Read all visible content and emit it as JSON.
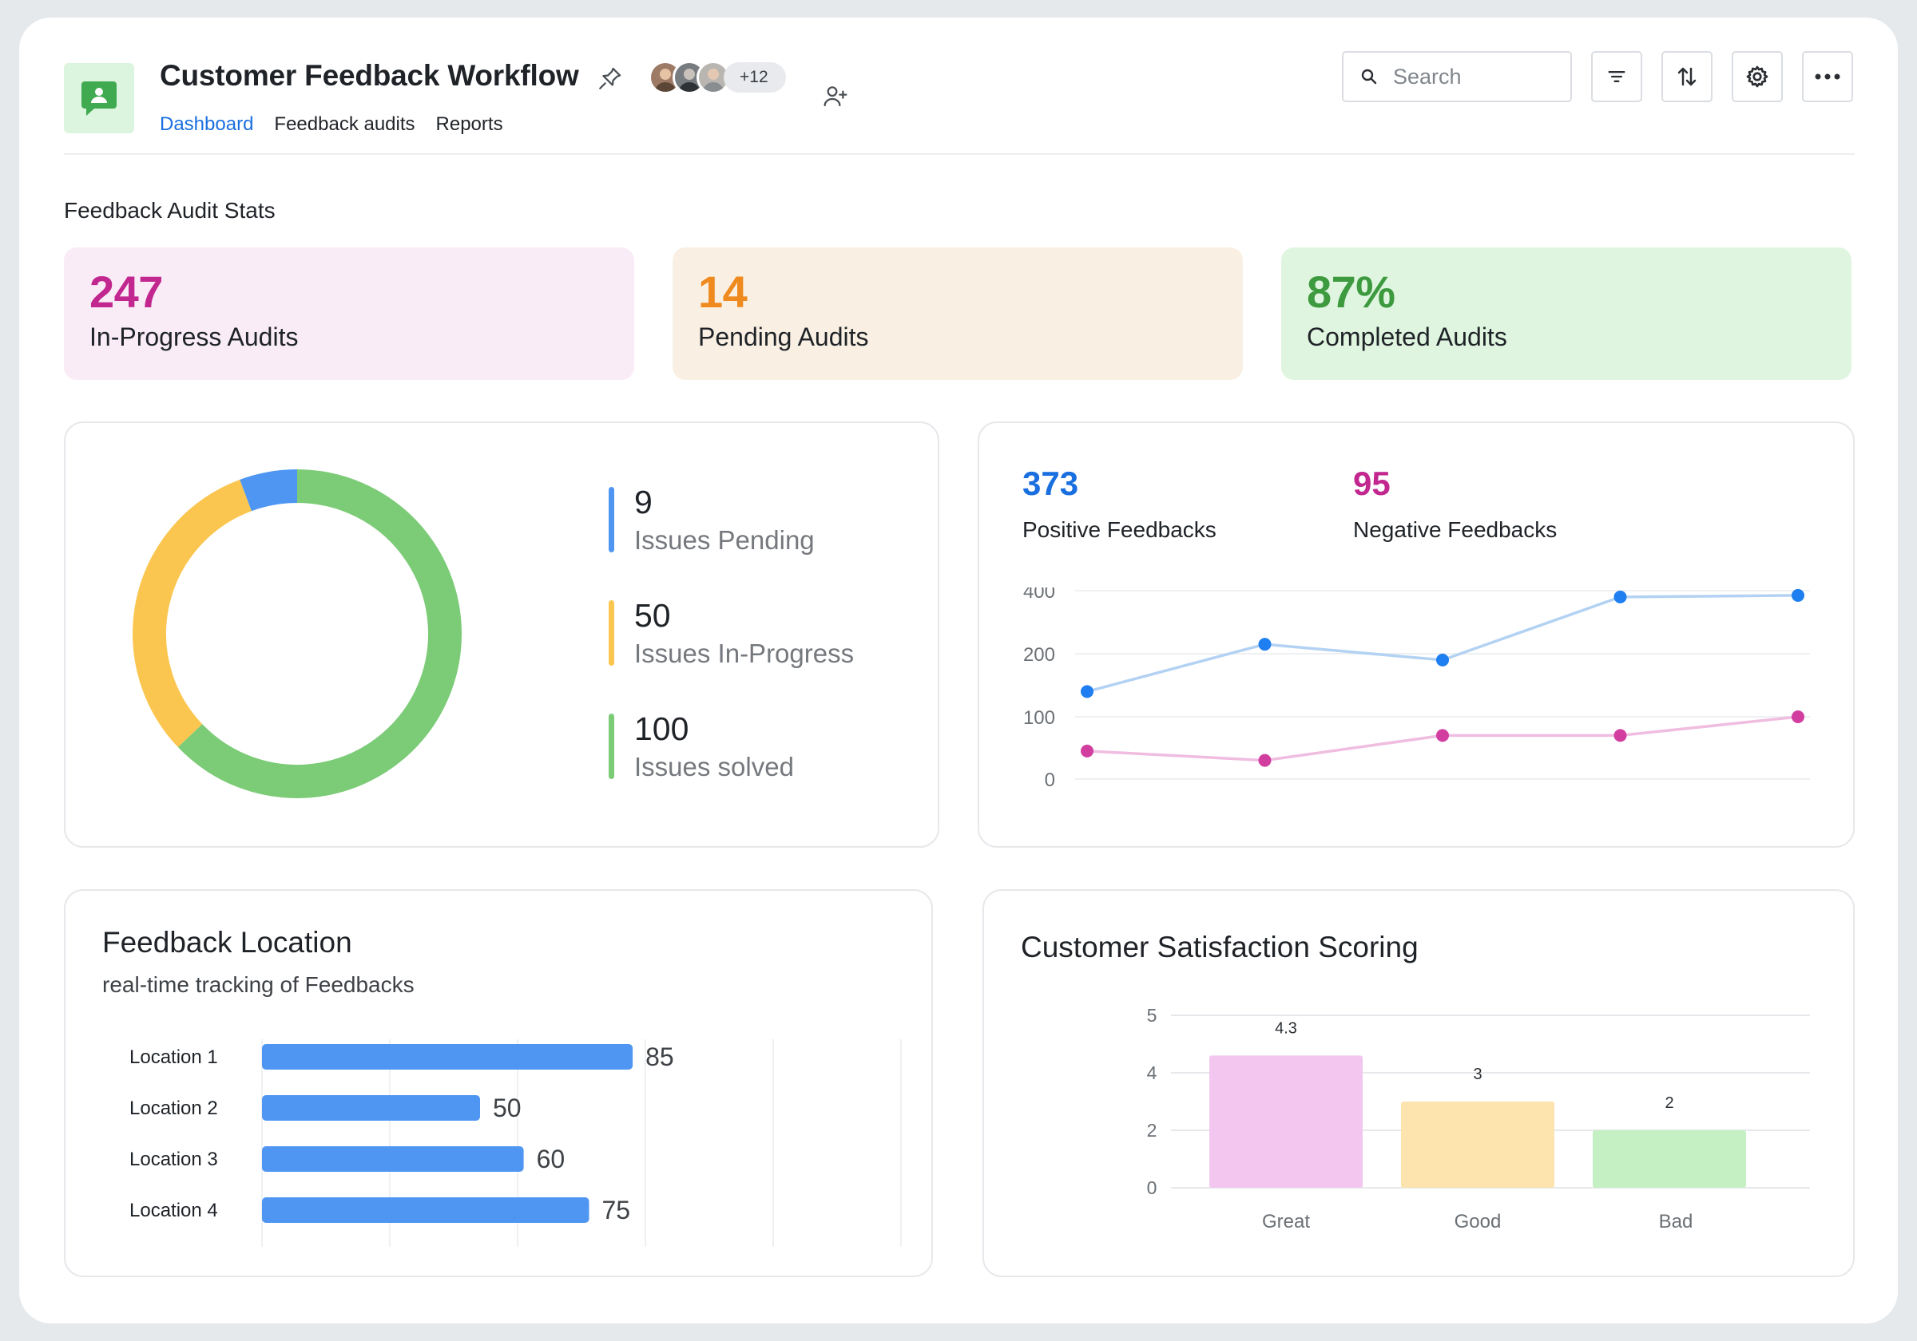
{
  "header": {
    "title": "Customer Feedback Workflow",
    "avatars_more": "+12",
    "tabs": [
      {
        "label": "Dashboard",
        "active": true
      },
      {
        "label": "Feedback audits",
        "active": false
      },
      {
        "label": "Reports",
        "active": false
      }
    ],
    "search": {
      "placeholder": "Search"
    },
    "icons": {
      "app": "chat-user-icon",
      "pin": "pin-icon",
      "add_user": "add-user-icon",
      "search": "search-icon",
      "filter": "filter-icon",
      "sort": "sort-icon",
      "settings": "gear-icon",
      "more": "more-dots-icon"
    }
  },
  "stats": {
    "section_title": "Feedback Audit Stats",
    "cards": [
      {
        "value": "247",
        "label": "In-Progress Audits",
        "bg": "#f9ecf7",
        "color": "#c2278f"
      },
      {
        "value": "14",
        "label": "Pending Audits",
        "bg": "#f9f0e3",
        "color": "#ef8a1f"
      },
      {
        "value": "87%",
        "label": "Completed Audits",
        "bg": "#dff5df",
        "color": "#3d9a3f"
      }
    ]
  },
  "issues": {
    "items": [
      {
        "value": "9",
        "label": "Issues Pending",
        "color": "#4e96f2"
      },
      {
        "value": "50",
        "label": "Issues In-Progress",
        "color": "#fbc650"
      },
      {
        "value": "100",
        "label": "Issues solved",
        "color": "#7ccb77"
      }
    ]
  },
  "feedbacks": {
    "positive": {
      "value": "373",
      "label": "Positive Feedbacks",
      "color": "#1a6fe0"
    },
    "negative": {
      "value": "95",
      "label": "Negative Feedbacks",
      "color": "#c2278f"
    }
  },
  "location": {
    "title": "Feedback Location",
    "subtitle": "real-time tracking of Feedbacks"
  },
  "satisfaction": {
    "title": "Customer Satisfaction Scoring"
  },
  "chart_data": [
    {
      "type": "pie",
      "donut": true,
      "categories": [
        "Issues Pending",
        "Issues In-Progress",
        "Issues solved"
      ],
      "values": [
        9,
        50,
        100
      ],
      "colors": [
        "#4e96f2",
        "#fbc650",
        "#7ccb77"
      ]
    },
    {
      "type": "line",
      "ytick_labels": [
        "0",
        "100",
        "200",
        "400"
      ],
      "grid": true,
      "series": [
        {
          "values": [
            140,
            230,
            190,
            380,
            385
          ],
          "color": "#1f7ef0",
          "line_color": "#b3d2f3"
        },
        {
          "values": [
            45,
            30,
            70,
            70,
            100
          ],
          "color": "#d23ea0",
          "line_color": "#f0bde1"
        }
      ]
    },
    {
      "type": "bar",
      "orientation": "horizontal",
      "categories": [
        "Location 1",
        "Location 2",
        "Location 3",
        "Location 4"
      ],
      "values": [
        85,
        50,
        60,
        75
      ],
      "data_labels": [
        "85",
        "50",
        "60",
        "75"
      ],
      "xlim": [
        0,
        100
      ],
      "grid": true,
      "color": "#4e96f2"
    },
    {
      "type": "bar",
      "categories": [
        "Great",
        "Good",
        "Bad"
      ],
      "values": [
        4.3,
        3,
        2
      ],
      "data_labels": [
        "4.3",
        "3",
        "2"
      ],
      "ytick_labels": [
        "0",
        "2",
        "4",
        "5"
      ],
      "grid": true,
      "colors": [
        "#f2c6ee",
        "#fde3ad",
        "#c5f0c4"
      ]
    }
  ]
}
